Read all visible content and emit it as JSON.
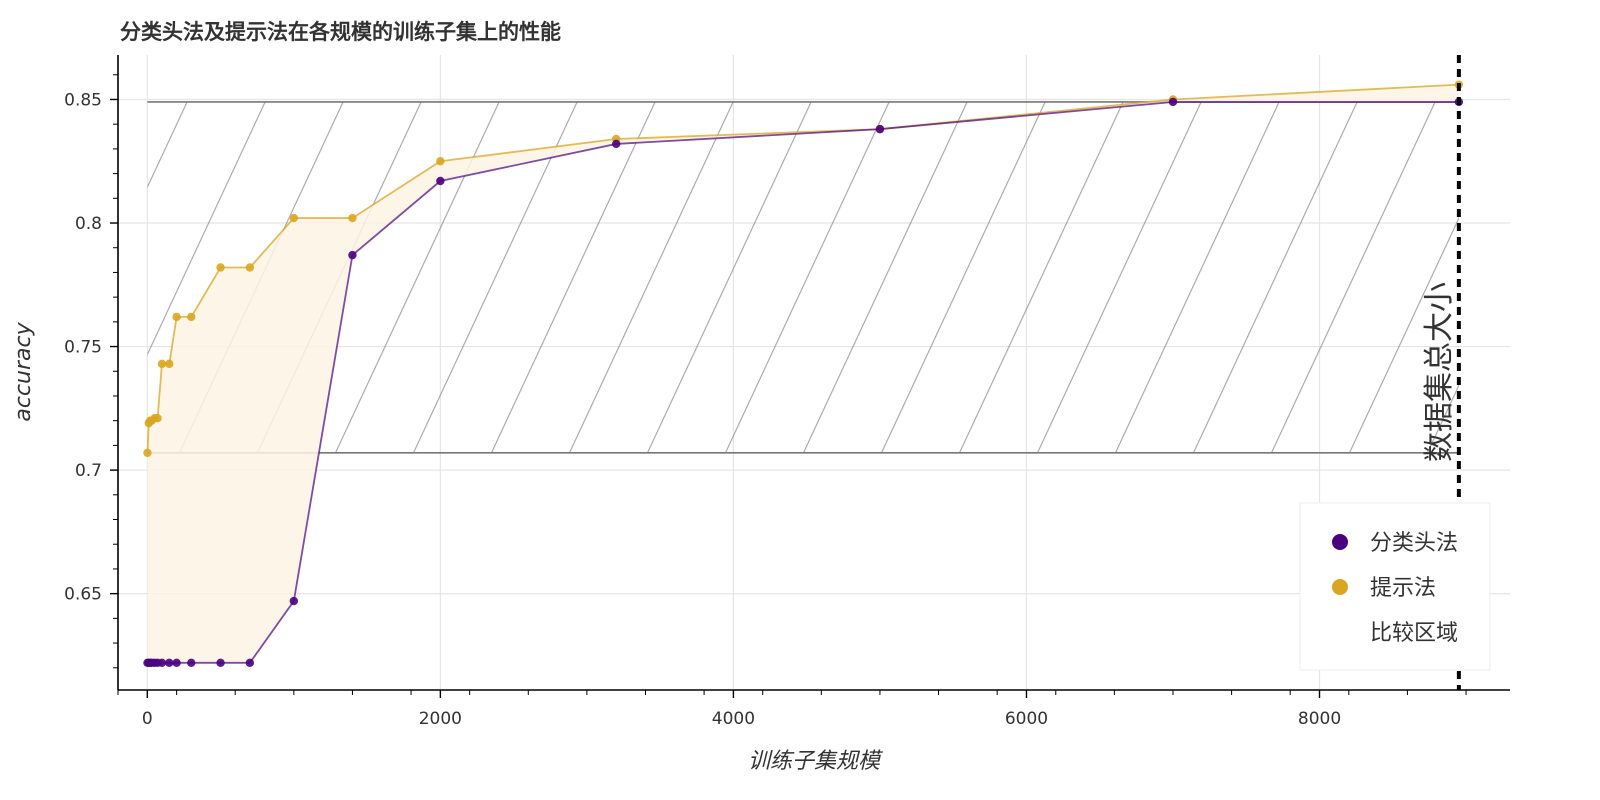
{
  "chart_data": {
    "type": "line",
    "title": "分类头法及提示法在各规模的训练子集上的性能",
    "xlabel": "训练子集规模",
    "ylabel": "accuracy",
    "xlim": [
      -200,
      9300
    ],
    "ylim": [
      0.611,
      0.868
    ],
    "x_ticks": [
      0,
      2000,
      4000,
      6000,
      8000
    ],
    "x_tick_labels": [
      "0",
      "2000",
      "4000",
      "6000",
      "8000"
    ],
    "y_ticks": [
      0.65,
      0.7,
      0.75,
      0.8,
      0.85
    ],
    "y_tick_labels": [
      "0.65",
      "0.7",
      "0.75",
      "0.8",
      "0.85"
    ],
    "grid": true,
    "series": [
      {
        "name": "分类头法",
        "color": "#4b0082",
        "x": [
          1,
          10,
          20,
          30,
          50,
          70,
          100,
          150,
          200,
          300,
          500,
          700,
          1000,
          1400,
          2000,
          3200,
          5000,
          7000,
          8951
        ],
        "y": [
          0.622,
          0.622,
          0.622,
          0.622,
          0.622,
          0.622,
          0.622,
          0.622,
          0.622,
          0.622,
          0.622,
          0.622,
          0.647,
          0.787,
          0.817,
          0.832,
          0.838,
          0.849,
          0.849
        ]
      },
      {
        "name": "提示法",
        "color": "#daa520",
        "x": [
          1,
          10,
          20,
          30,
          50,
          70,
          100,
          150,
          200,
          300,
          500,
          700,
          1000,
          1400,
          2000,
          3200,
          5000,
          7000,
          8951
        ],
        "y": [
          0.707,
          0.719,
          0.72,
          0.72,
          0.721,
          0.721,
          0.743,
          0.743,
          0.762,
          0.762,
          0.782,
          0.782,
          0.802,
          0.802,
          0.825,
          0.834,
          0.838,
          0.85,
          0.856
        ]
      }
    ],
    "comparison_region": {
      "name": "比较区域",
      "x": [
        1,
        8951
      ],
      "y": [
        0.707,
        0.849
      ]
    },
    "dataset_size_line": {
      "x": 8951,
      "label": "数据集总大小"
    },
    "legend": {
      "position": "bottom-right",
      "entries": [
        "分类头法",
        "提示法",
        "比较区域"
      ]
    },
    "colors": {
      "classification": "#4b0082",
      "prompt": "#daa520",
      "fill": "#fdf3e4",
      "grid": "#e5e5e5",
      "hatch": "#888888"
    }
  }
}
